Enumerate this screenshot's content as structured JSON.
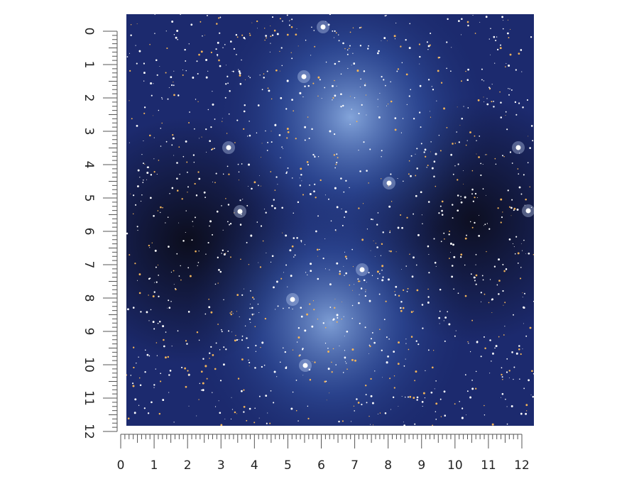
{
  "vertical_ruler": {
    "labels": [
      "0",
      "1",
      "2",
      "3",
      "4",
      "5",
      "6",
      "7",
      "8",
      "9",
      "10",
      "11",
      "12"
    ]
  },
  "horizontal_ruler": {
    "labels": [
      "0",
      "1",
      "2",
      "3",
      "4",
      "5",
      "6",
      "7",
      "8",
      "9",
      "10",
      "11",
      "12"
    ]
  }
}
